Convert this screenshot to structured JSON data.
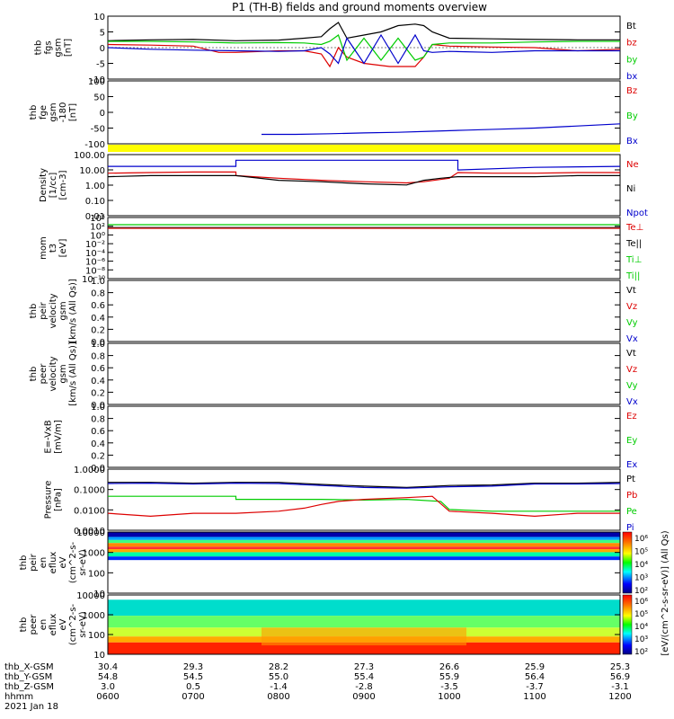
{
  "chart_data": {
    "type": "line",
    "title": "P1 (TH-B) fields and ground moments overview",
    "date_label": "2021 Jan 18",
    "time_axis": {
      "rows": [
        {
          "label": "thb_X-GSM",
          "values": [
            "30.4",
            "29.3",
            "28.2",
            "27.3",
            "26.6",
            "25.9",
            "25.3"
          ]
        },
        {
          "label": "thb_Y-GSM",
          "values": [
            "54.8",
            "54.5",
            "55.0",
            "55.4",
            "55.9",
            "56.4",
            "56.9"
          ]
        },
        {
          "label": "thb_Z-GSM",
          "values": [
            "3.0",
            "0.5",
            "-1.4",
            "-2.8",
            "-3.5",
            "-3.7",
            "-3.1"
          ]
        },
        {
          "label": "hhmm",
          "values": [
            "0600",
            "0700",
            "0800",
            "0900",
            "1000",
            "1100",
            "1200"
          ]
        }
      ]
    },
    "panels": [
      {
        "ylabel": [
          "thb",
          "fgs",
          "gsm",
          "[nT]"
        ],
        "ylim": [
          -10,
          10
        ],
        "ticks": [
          "10",
          "5",
          "0",
          "-5",
          "-10"
        ],
        "legend": [
          {
            "name": "Bt",
            "color": "#000000"
          },
          {
            "name": "bz",
            "color": "#dd0000"
          },
          {
            "name": "by",
            "color": "#00cc00"
          },
          {
            "name": "bx",
            "color": "#0000cc"
          }
        ],
        "series": [
          {
            "name": "Bt",
            "color": "#000000",
            "x": [
              6,
              6.5,
              7,
              7.5,
              8,
              8.3,
              8.5,
              8.6,
              8.7,
              8.8,
              9,
              9.2,
              9.4,
              9.6,
              9.7,
              9.8,
              10,
              10.5,
              11,
              11.5,
              12
            ],
            "y": [
              2.2,
              2.5,
              2.6,
              2.2,
              2.4,
              3,
              3.5,
              6,
              8,
              3,
              4,
              5,
              7,
              7.5,
              7,
              5,
              3,
              2.8,
              2.6,
              2.5,
              2.5
            ]
          },
          {
            "name": "bz",
            "color": "#dd0000",
            "x": [
              6,
              6.5,
              7,
              7.3,
              7.5,
              8,
              8.3,
              8.5,
              8.6,
              8.7,
              8.8,
              9,
              9.3,
              9.6,
              9.7,
              9.8,
              10,
              10.5,
              11,
              11.5,
              12
            ],
            "y": [
              1,
              0.8,
              0.5,
              -1.5,
              -1.5,
              -1,
              -1,
              -2,
              -6,
              0,
              -3,
              -5,
              -6,
              -6,
              -3,
              1,
              0.5,
              0.2,
              0,
              -1,
              -0.5
            ]
          },
          {
            "name": "by",
            "color": "#00cc00",
            "x": [
              6,
              6.5,
              7,
              7.5,
              8,
              8.3,
              8.5,
              8.6,
              8.7,
              8.8,
              9,
              9.2,
              9.4,
              9.6,
              9.7,
              9.8,
              10,
              10.5,
              11,
              11.5,
              12
            ],
            "y": [
              2,
              2,
              1.8,
              1.5,
              1.6,
              1.5,
              1,
              2,
              4,
              -4,
              3,
              -4,
              3,
              -4,
              -3,
              1,
              1.5,
              1.5,
              1.8,
              2,
              2
            ]
          },
          {
            "name": "bx",
            "color": "#0000cc",
            "x": [
              6,
              6.5,
              7,
              7.5,
              8,
              8.3,
              8.5,
              8.6,
              8.7,
              8.8,
              9,
              9.2,
              9.4,
              9.6,
              9.7,
              9.8,
              10,
              10.5,
              11,
              11.5,
              12
            ],
            "y": [
              0,
              -0.5,
              -0.8,
              -1,
              -1.2,
              -1,
              0,
              -2,
              -5,
              3,
              -5,
              4,
              -5,
              4,
              -1,
              -1.5,
              -1.2,
              -1.5,
              -1,
              -1,
              -1
            ]
          }
        ]
      },
      {
        "ylabel": [
          "thb",
          "fge",
          "gsm",
          "-180",
          "[nT]"
        ],
        "ylim": [
          -150,
          150
        ],
        "ticks": [
          "100",
          "50",
          "0",
          "-50",
          "-100"
        ],
        "legend": [
          {
            "name": "Bz",
            "color": "#dd0000"
          },
          {
            "name": "By",
            "color": "#00cc00"
          },
          {
            "name": "Bx",
            "color": "#0000cc"
          }
        ],
        "series": [
          {
            "name": "Bx",
            "color": "#0000cc",
            "x": [
              7.8,
              8.2,
              8.6,
              9,
              9.4,
              9.8,
              10.2,
              10.6,
              11,
              11.5,
              12
            ],
            "y": [
              -105,
              -105,
              -102,
              -98,
              -95,
              -90,
              -85,
              -80,
              -75,
              -65,
              -55
            ]
          }
        ]
      },
      {
        "ylabel": [
          "Density",
          "[1/cc]",
          "[cm-3]"
        ],
        "log": true,
        "ylim": [
          0.002,
          300
        ],
        "ticks": [
          "100.00",
          "10.00",
          "1.00",
          "0.10",
          "0.01"
        ],
        "legend": [
          {
            "name": "Ne",
            "color": "#dd0000"
          },
          {
            "name": "Ni",
            "color": "#000000"
          },
          {
            "name": "Npot",
            "color": "#0000cc"
          }
        ],
        "series": [
          {
            "name": "Npot",
            "color": "#0000cc",
            "x": [
              6,
              7.5,
              7.5,
              8.8,
              10.1,
              10.1,
              11,
              12
            ],
            "y": [
              30,
              30,
              100,
              100,
              100,
              15,
              25,
              30
            ]
          },
          {
            "name": "Ne",
            "color": "#dd0000",
            "x": [
              6,
              6.5,
              7,
              7.5,
              7.5,
              8,
              8.5,
              9,
              9.5,
              9.7,
              10,
              10.1,
              10.5,
              11,
              11.5,
              12
            ],
            "y": [
              8,
              9,
              10,
              10,
              5,
              3,
              2,
              1.5,
              1.2,
              1.5,
              3,
              9,
              8,
              8,
              9,
              9
            ]
          },
          {
            "name": "Ni",
            "color": "#000000",
            "x": [
              6,
              6.5,
              7,
              7.5,
              8,
              8.5,
              9,
              9.5,
              9.7,
              9.9,
              10.1,
              10.5,
              11,
              11.5,
              12
            ],
            "y": [
              4,
              5,
              5,
              5,
              2,
              1.5,
              1,
              0.8,
              2,
              3,
              4,
              4,
              4,
              5,
              5
            ]
          }
        ]
      },
      {
        "ylabel": [
          "mom",
          "t3",
          "[eV]"
        ],
        "log": true,
        "ylim": [
          1e-11,
          10000.0
        ],
        "ticks": [
          "10⁴",
          "10²",
          "10⁰",
          "10⁻²",
          "10⁻⁴",
          "10⁻⁶",
          "10⁻⁸",
          "10⁻¹⁰"
        ],
        "legend": [
          {
            "name": "Te⊥",
            "color": "#dd0000"
          },
          {
            "name": "Te||",
            "color": "#000000"
          },
          {
            "name": "Ti⊥",
            "color": "#00cc00"
          },
          {
            "name": "Ti||",
            "color": "#00cc00"
          }
        ],
        "series": []
      },
      {
        "ylabel": [
          "thb",
          "peir",
          "velocity",
          "gsm",
          "[km/s (All Qs)]"
        ],
        "ylim": [
          0,
          1
        ],
        "ticks": [
          "1.0",
          "0.8",
          "0.6",
          "0.4",
          "0.2",
          "0.0"
        ],
        "legend": [
          {
            "name": "Vt",
            "color": "#000000"
          },
          {
            "name": "Vz",
            "color": "#dd0000"
          },
          {
            "name": "Vy",
            "color": "#00cc00"
          },
          {
            "name": "Vx",
            "color": "#0000cc"
          }
        ],
        "series": []
      },
      {
        "ylabel": [
          "thb",
          "peer",
          "velocity",
          "gsm",
          "[km/s (All Qs)]"
        ],
        "ylim": [
          0,
          1
        ],
        "ticks": [
          "1.0",
          "0.8",
          "0.6",
          "0.4",
          "0.2",
          "0.0"
        ],
        "legend": [
          {
            "name": "Vt",
            "color": "#000000"
          },
          {
            "name": "Vz",
            "color": "#dd0000"
          },
          {
            "name": "Vy",
            "color": "#00cc00"
          },
          {
            "name": "Vx",
            "color": "#0000cc"
          }
        ],
        "series": []
      },
      {
        "ylabel": [
          "E=-VxB",
          "[mV/m]"
        ],
        "ylim": [
          0,
          1
        ],
        "ticks": [
          "1.0",
          "0.8",
          "0.6",
          "0.4",
          "0.2",
          "0.0"
        ],
        "legend": [
          {
            "name": "Ez",
            "color": "#dd0000"
          },
          {
            "name": "Ey",
            "color": "#00cc00"
          },
          {
            "name": "Ex",
            "color": "#0000cc"
          }
        ],
        "series": []
      },
      {
        "ylabel": [
          "Pressure",
          "[nPa]"
        ],
        "log": true,
        "ylim": [
          0.0003,
          1.2
        ],
        "ticks": [
          "1.0000",
          "0.1000",
          "0.0100",
          "0.0010"
        ],
        "legend": [
          {
            "name": "Pt",
            "color": "#000000"
          },
          {
            "name": "Pb",
            "color": "#dd0000"
          },
          {
            "name": "Pe",
            "color": "#00cc00"
          },
          {
            "name": "Pi",
            "color": "#0000cc"
          }
        ],
        "series": [
          {
            "name": "Pt",
            "color": "#000000",
            "x": [
              6,
              6.5,
              7,
              7.5,
              8,
              8.5,
              9,
              9.5,
              10,
              10.5,
              11,
              11.5,
              12
            ],
            "y": [
              0.2,
              0.2,
              0.18,
              0.2,
              0.2,
              0.15,
              0.12,
              0.1,
              0.13,
              0.14,
              0.18,
              0.18,
              0.2
            ]
          },
          {
            "name": "Pi",
            "color": "#0000cc",
            "x": [
              6,
              6.5,
              7,
              7.5,
              8,
              8.5,
              9,
              9.5,
              10,
              10.5,
              11,
              11.5,
              12
            ],
            "y": [
              0.17,
              0.18,
              0.16,
              0.18,
              0.17,
              0.13,
              0.1,
              0.09,
              0.11,
              0.12,
              0.16,
              0.16,
              0.17
            ]
          },
          {
            "name": "Pe",
            "color": "#00cc00",
            "x": [
              6,
              6.5,
              7,
              7.5,
              7.5,
              8,
              8.5,
              9,
              9.5,
              9.9,
              10,
              10.5,
              11,
              11.5,
              12
            ],
            "y": [
              0.03,
              0.03,
              0.03,
              0.03,
              0.02,
              0.02,
              0.02,
              0.018,
              0.02,
              0.015,
              0.005,
              0.004,
              0.004,
              0.004,
              0.004
            ]
          },
          {
            "name": "Pb",
            "color": "#dd0000",
            "x": [
              6,
              6.5,
              7,
              7.5,
              8,
              8.3,
              8.5,
              8.7,
              9,
              9.5,
              9.8,
              10,
              10.5,
              11,
              11.5,
              12
            ],
            "y": [
              0.003,
              0.002,
              0.003,
              0.003,
              0.004,
              0.006,
              0.01,
              0.015,
              0.02,
              0.025,
              0.03,
              0.004,
              0.003,
              0.002,
              0.003,
              0.003
            ]
          }
        ]
      },
      {
        "ylabel": [
          "thb",
          "peir",
          "en",
          "eflux",
          "eV",
          "(cm^2-s-",
          "sr-eV)"
        ],
        "log": true,
        "spectrogram": true,
        "ylim": [
          4,
          20000
        ],
        "ticks": [
          "10000",
          "1000",
          "100",
          "10"
        ]
      },
      {
        "ylabel": [
          "thb",
          "peer",
          "en",
          "eflux",
          "eV",
          "(cm^2-s-",
          "sr-eV)"
        ],
        "log": true,
        "spectrogram": true,
        "ylim": [
          5,
          20000
        ],
        "ticks": [
          "10000",
          "1000",
          "100",
          "10"
        ]
      }
    ],
    "colorbars": [
      {
        "ticks": [
          "10⁶",
          "10⁵",
          "10⁴",
          "10³",
          "10²"
        ]
      },
      {
        "ticks": [
          "10⁶",
          "10⁵",
          "10⁴",
          "10³",
          "10²"
        ]
      }
    ],
    "colorbar_label": "[eV/(cm^2-s-sr-eV)] (All Qs)",
    "xlim": [
      6,
      12
    ]
  }
}
